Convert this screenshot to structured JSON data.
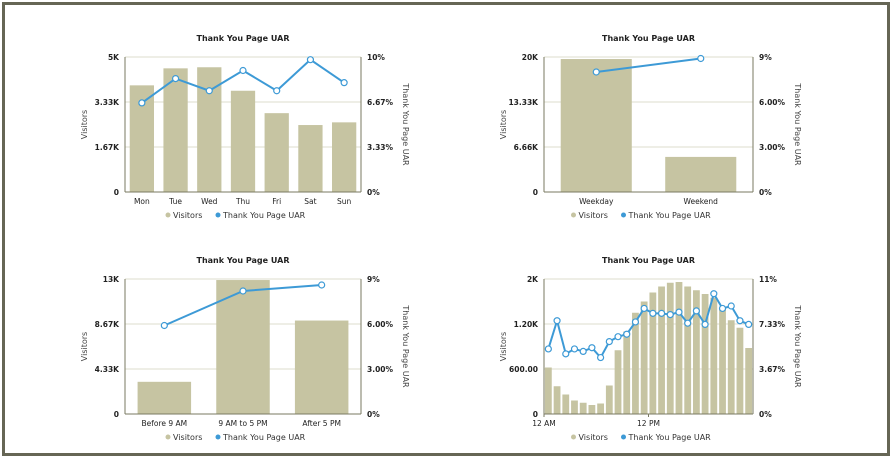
{
  "colors": {
    "bar": "#c6c4a2",
    "line": "#3d9ad6",
    "grid": "#dcdccc",
    "axis": "#7a7a62"
  },
  "chart_data": [
    {
      "type": "bar",
      "title": "Thank You Page UAR",
      "ylabel": "Visitors",
      "y2label": "Thank You Page UAR",
      "categories": [
        "Mon",
        "Tue",
        "Wed",
        "Thu",
        "Fri",
        "Sat",
        "Sun"
      ],
      "ylim": [
        0,
        5000
      ],
      "yticks": [
        "0",
        "1.67K",
        "3.33K",
        "5K"
      ],
      "y2lim": [
        0,
        10
      ],
      "y2ticks": [
        "0%",
        "3.33%",
        "6.67%",
        "10%"
      ],
      "grid": true,
      "legend_position": "bottom",
      "series": [
        {
          "name": "Visitors",
          "kind": "bar",
          "axis": "left",
          "values": [
            3950,
            4580,
            4620,
            3750,
            2920,
            2480,
            2580
          ]
        },
        {
          "name": "Thank You Page UAR",
          "kind": "line",
          "axis": "right",
          "values": [
            6.6,
            8.4,
            7.5,
            9.0,
            7.5,
            9.8,
            8.1
          ]
        }
      ]
    },
    {
      "type": "bar",
      "title": "Thank You Page UAR",
      "ylabel": "Visitors",
      "y2label": "Thank You Page UAR",
      "categories": [
        "Weekday",
        "Weekend"
      ],
      "ylim": [
        0,
        20000
      ],
      "yticks": [
        "0",
        "6.66K",
        "13.33K",
        "20K"
      ],
      "y2lim": [
        0,
        9
      ],
      "y2ticks": [
        "0%",
        "3.00%",
        "6.00%",
        "9%"
      ],
      "grid": true,
      "legend_position": "bottom",
      "series": [
        {
          "name": "Visitors",
          "kind": "bar",
          "axis": "left",
          "values": [
            19700,
            5200
          ]
        },
        {
          "name": "Thank You Page UAR",
          "kind": "line",
          "axis": "right",
          "values": [
            8.0,
            8.9
          ]
        }
      ]
    },
    {
      "type": "bar",
      "title": "Thank You Page UAR",
      "ylabel": "Visitors",
      "y2label": "Thank You Page UAR",
      "categories": [
        "Before 9 AM",
        "9 AM to 5 PM",
        "After 5 PM"
      ],
      "ylim": [
        0,
        13000
      ],
      "yticks": [
        "0",
        "4.33K",
        "8.67K",
        "13K"
      ],
      "y2lim": [
        0,
        9
      ],
      "y2ticks": [
        "0%",
        "3.00%",
        "6.00%",
        "9%"
      ],
      "grid": true,
      "legend_position": "bottom",
      "series": [
        {
          "name": "Visitors",
          "kind": "bar",
          "axis": "left",
          "values": [
            3100,
            12900,
            9000
          ]
        },
        {
          "name": "Thank You Page UAR",
          "kind": "line",
          "axis": "right",
          "values": [
            5.9,
            8.2,
            8.6
          ]
        }
      ]
    },
    {
      "type": "bar",
      "title": "Thank You Page UAR",
      "ylabel": "Visitors",
      "y2label": "Thank You Page UAR",
      "categories": [
        "12 AM",
        "",
        "",
        "",
        "",
        "",
        "",
        "",
        "",
        "",
        "",
        "",
        "12 PM",
        "",
        "",
        "",
        "",
        "",
        "",
        "",
        "",
        "",
        "",
        ""
      ],
      "xtick_labels": [
        "12 AM",
        "12 PM"
      ],
      "ylim": [
        0,
        1800
      ],
      "yticks": [
        "0",
        "600.00",
        "1.20K",
        "2K"
      ],
      "y2lim": [
        0,
        11
      ],
      "y2ticks": [
        "0%",
        "3.67%",
        "7.33%",
        "11%"
      ],
      "grid": true,
      "legend_position": "bottom",
      "series": [
        {
          "name": "Visitors",
          "kind": "bar",
          "axis": "left",
          "values": [
            620,
            370,
            260,
            180,
            150,
            120,
            140,
            380,
            850,
            1100,
            1350,
            1500,
            1620,
            1700,
            1750,
            1760,
            1700,
            1650,
            1600,
            1550,
            1400,
            1250,
            1150,
            880
          ]
        },
        {
          "name": "Thank You Page UAR",
          "kind": "line",
          "axis": "right",
          "values": [
            5.3,
            7.6,
            4.9,
            5.3,
            5.1,
            5.4,
            4.6,
            5.9,
            6.3,
            6.5,
            7.5,
            8.6,
            8.2,
            8.2,
            8.1,
            8.3,
            7.4,
            8.4,
            7.3,
            9.8,
            8.6,
            8.8,
            7.6,
            7.3
          ]
        }
      ]
    }
  ]
}
